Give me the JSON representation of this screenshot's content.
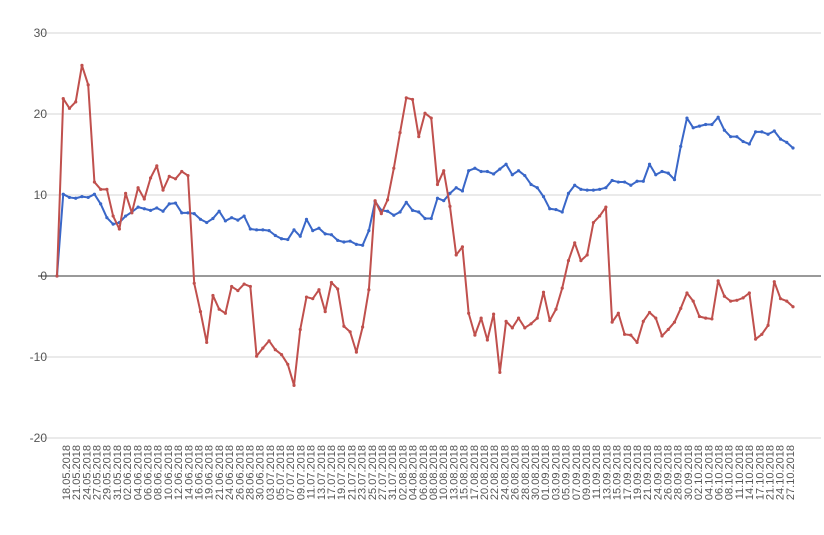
{
  "chart_data": {
    "type": "line",
    "title": "",
    "xlabel": "",
    "ylabel": "",
    "ylim": [
      -20,
      30
    ],
    "yticks": [
      -20,
      -10,
      0,
      10,
      20,
      30
    ],
    "grid": true,
    "x_tick_labels": [
      "18.05.2018",
      "21.05.2018",
      "24.05.2018",
      "27.05.2018",
      "29.05.2018",
      "31.05.2018",
      "02.06.2018",
      "04.06.2018",
      "06.06.2018",
      "08.06.2018",
      "10.06.2018",
      "12.06.2018",
      "14.06.2018",
      "16.06.2018",
      "19.06.2018",
      "21.06.2018",
      "24.06.2018",
      "26.06.2018",
      "28.06.2018",
      "30.06.2018",
      "03.07.2018",
      "05.07.2018",
      "07.07.2018",
      "09.07.2018",
      "11.07.2018",
      "13.07.2018",
      "17.07.2018",
      "19.07.2018",
      "21.07.2018",
      "23.07.2018",
      "25.07.2018",
      "27.07.2018",
      "31.07.2018",
      "02.08.2018",
      "04.08.2018",
      "06.08.2018",
      "08.08.2018",
      "10.08.2018",
      "13.08.2018",
      "15.08.2018",
      "17.08.2018",
      "20.08.2018",
      "22.08.2018",
      "24.08.2018",
      "26.08.2018",
      "28.08.2018",
      "30.08.2018",
      "01.09.2018",
      "03.09.2018",
      "05.09.2018",
      "07.09.2018",
      "09.09.2018",
      "11.09.2018",
      "13.09.2018",
      "15.09.2018",
      "17.09.2018",
      "19.09.2018",
      "21.09.2018",
      "24.09.2018",
      "26.09.2018",
      "28.09.2018",
      "30.09.2018",
      "02.10.2018",
      "04.10.2018",
      "06.10.2018",
      "08.10.2018",
      "11.10.2018",
      "14.10.2018",
      "17.10.2018",
      "21.10.2018",
      "24.10.2018",
      "27.10.2018"
    ],
    "series": [
      {
        "color": "#3a67c8",
        "values": [
          0,
          10.1,
          9.7,
          9.6,
          9.8,
          9.7,
          10.1,
          8.9,
          7.2,
          6.4,
          6.6,
          7.4,
          7.9,
          8.5,
          8.3,
          8.1,
          8.4,
          8,
          8.9,
          9,
          7.8,
          7.8,
          7.7,
          7,
          6.6,
          7.1,
          8,
          6.8,
          7.2,
          6.9,
          7.4,
          5.8,
          5.7,
          5.7,
          5.6,
          5,
          4.6,
          4.5,
          5.7,
          4.9,
          7,
          5.6,
          5.9,
          5.2,
          5.1,
          4.4,
          4.2,
          4.3,
          3.9,
          3.8,
          5.6,
          9.2,
          8.1,
          8,
          7.5,
          7.9,
          9.1,
          8.1,
          7.9,
          7.1,
          7.1,
          9.6,
          9.3,
          10.2,
          10.9,
          10.5,
          13,
          13.3,
          12.9,
          12.9,
          12.6,
          13.2,
          13.8,
          12.5,
          13,
          12.4,
          11.3,
          10.9,
          9.8,
          8.3,
          8.2,
          7.9,
          10.2,
          11.2,
          10.7,
          10.6,
          10.6,
          10.7,
          10.9,
          11.8,
          11.6,
          11.6,
          11.2,
          11.7,
          11.7,
          13.8,
          12.5,
          12.9,
          12.7,
          11.9,
          16,
          19.5,
          18.3,
          18.5,
          18.7,
          18.7,
          19.6,
          18,
          17.2,
          17.2,
          16.6,
          16.3,
          17.8,
          17.8,
          17.5,
          17.9,
          16.9,
          16.5,
          15.8
        ]
      },
      {
        "color": "#c0504d",
        "values": [
          0,
          21.9,
          20.7,
          21.5,
          26,
          23.6,
          11.6,
          10.7,
          10.7,
          7.4,
          5.8,
          10.2,
          7.8,
          10.9,
          9.5,
          12.1,
          13.6,
          10.6,
          12.3,
          12,
          12.9,
          12.4,
          -0.9,
          -4.4,
          -8.2,
          -2.4,
          -4.1,
          -4.6,
          -1.3,
          -1.8,
          -1,
          -1.3,
          -9.9,
          -8.9,
          -8,
          -9.1,
          -9.7,
          -10.9,
          -13.5,
          -6.6,
          -2.6,
          -2.8,
          -1.7,
          -4.4,
          -0.8,
          -1.6,
          -6.2,
          -6.9,
          -9.4,
          -6.3,
          -1.7,
          9.3,
          7.7,
          9.4,
          13.3,
          17.7,
          22,
          21.8,
          17.2,
          20.1,
          19.5,
          11.3,
          13,
          8.6,
          2.6,
          3.6,
          -4.6,
          -7.3,
          -5.2,
          -7.9,
          -4.7,
          -11.9,
          -5.6,
          -6.4,
          -5.2,
          -6.4,
          -5.9,
          -5.2,
          -2,
          -5.5,
          -4.1,
          -1.5,
          1.9,
          4.1,
          1.9,
          2.6,
          6.6,
          7.4,
          8.5,
          -5.7,
          -4.6,
          -7.2,
          -7.3,
          -8.2,
          -5.6,
          -4.5,
          -5.2,
          -7.4,
          -6.6,
          -5.7,
          -4,
          -2.1,
          -3.1,
          -5,
          -5.2,
          -5.3,
          -0.6,
          -2.5,
          -3.1,
          -3,
          -2.7,
          -2.1,
          -7.8,
          -7.2,
          -6.1,
          -0.7,
          -2.8,
          -3.1,
          -3.8
        ]
      }
    ]
  }
}
